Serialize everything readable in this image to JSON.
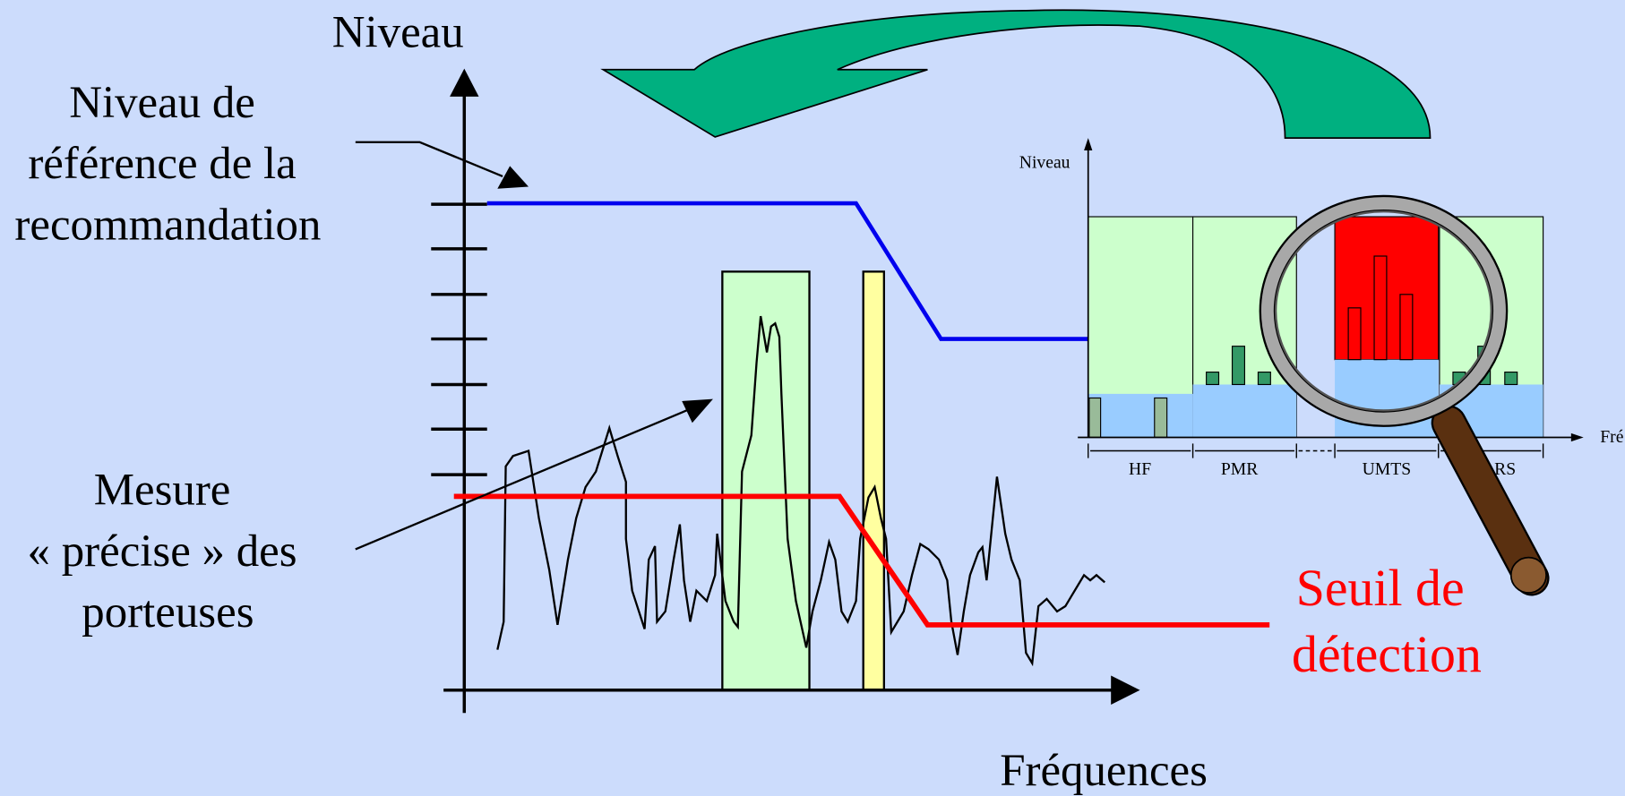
{
  "title": "Niveau",
  "reference_label": [
    "Niveau de",
    "référence de la",
    "recommandation"
  ],
  "measure_label": [
    "Mesure",
    "« précise » des",
    "porteuses"
  ],
  "x_axis_label": "Fréquences",
  "threshold_label": [
    "Seuil de",
    "détection"
  ],
  "inset": {
    "y_axis_label": "Niveau",
    "x_axis_label": "Fré",
    "bands": [
      "HF",
      "PMR",
      "UMTS",
      "DARS"
    ]
  }
}
